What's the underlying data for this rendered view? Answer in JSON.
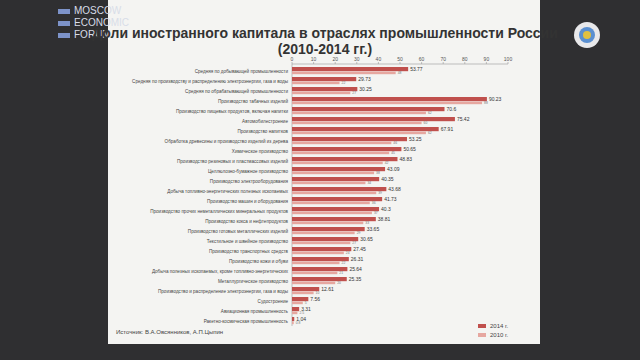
{
  "chart_data": {
    "type": "bar",
    "orientation": "horizontal",
    "title": "Доли иностранного капитала в отраслях промышленности России (2010-2014 гг.)",
    "annotations": [
      "Источник: В.А.Овсянников, А.П.Цыпин"
    ],
    "logo": [
      "MOSCOW",
      "ECONOMIC",
      "FORUM"
    ],
    "categories": [
      "Средняя по добывающей промышленности",
      "Средняя по производству и распределению электроэнергии, газа и воды",
      "Средняя по обрабатывающей промышленности",
      "Производство табачных изделий",
      "Производство пищевых продуктов, включая напитки",
      "Автомобилестроение",
      "Производство напитков",
      "Обработка древесины и производство изделий из дерева",
      "Химическое производство",
      "Производство резиновых и пластмассовых изделий",
      "Целлюлозно-бумажное производство",
      "Производство электрооборудования",
      "Добыча топливно-энергетических полезных ископаемых",
      "Производство машин и оборудования",
      "Производство прочих неметаллических минеральных продуктов",
      "Производство кокса и нефтепродуктов",
      "Производство готовых металлических изделий",
      "Текстильное и швейное производство",
      "Производство транспортных средств",
      "Производство кожи и обуви",
      "Добыча полезных ископаемых, кроме топливно-энергетических",
      "Металлургическое производство",
      "Производство и распределение электроэнергии, газа и воды",
      "Судостроение",
      "Авиационная промышленность",
      "Ракетно-космическая промышленность"
    ],
    "series": [
      {
        "name": "2014 г.",
        "color": "#c0504d",
        "values": [
          53.77,
          29.73,
          30.25,
          90.23,
          70.6,
          75.42,
          67.91,
          53.25,
          50.65,
          48.83,
          43.09,
          40.35,
          43.68,
          41.73,
          40.3,
          38.81,
          33.65,
          30.65,
          27.45,
          26.31,
          25.64,
          25.35,
          12.61,
          7.56,
          3.31,
          1.04
        ]
      },
      {
        "name": "2010 г.",
        "color": "#e6a7a0",
        "values": [
          48,
          22,
          27,
          88,
          62,
          60,
          62,
          46,
          45,
          42,
          38,
          34,
          39,
          36,
          37,
          33,
          29,
          27,
          24,
          22,
          21,
          20,
          10,
          5,
          2.5,
          0.8
        ]
      }
    ],
    "xlim": [
      0,
      100
    ],
    "xticks": [
      0,
      10,
      20,
      30,
      40,
      50,
      60,
      70,
      80,
      90,
      100
    ],
    "grid": false,
    "legend": "bottom-right",
    "data_labels": true
  }
}
